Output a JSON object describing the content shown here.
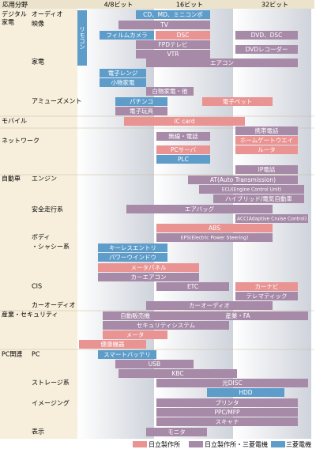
{
  "header": {
    "title": "応用分野",
    "columns": [
      "4/8ビット",
      "16ビット",
      "32ビット"
    ]
  },
  "remote": "リモコン",
  "categories": [
    "デジタル",
    "家電",
    "オーディオ",
    "映像",
    "家電",
    "アミューズメント",
    "モバイル",
    "ネットワーク",
    "自動車",
    "エンジン",
    "安全走行系",
    "ボディ",
    "・シャシー系",
    "CIS",
    "カーオーディオ",
    "産業・セキュリティ",
    "PC関連",
    "PC",
    "ストレージ系",
    "イメージング",
    "表示"
  ],
  "legend": [
    {
      "label": "日立製作所",
      "color": "#e99393"
    },
    {
      "label": "日立製作所・三菱電機",
      "color": "#a68aa8"
    },
    {
      "label": "三菱電機",
      "color": "#5e9dc9"
    }
  ],
  "bars": [
    {
      "label": "CD、MD、ミニコンポ",
      "maker": 2
    },
    {
      "label": "TV",
      "maker": 1
    },
    {
      "label": "フィルムカメラ",
      "maker": 2
    },
    {
      "label": "DSC",
      "maker": 0
    },
    {
      "label": "DVD、DSC",
      "maker": 1
    },
    {
      "label": "FPDテレビ",
      "maker": 1
    },
    {
      "label": "DVDレコーダー",
      "maker": 1
    },
    {
      "label": "VTR",
      "maker": 1
    },
    {
      "label": "エアコン",
      "maker": 1
    },
    {
      "label": "電子レンジ",
      "maker": 2
    },
    {
      "label": "小物家電",
      "maker": 2
    },
    {
      "label": "白物家電・他",
      "maker": 1
    },
    {
      "label": "パチンコ",
      "maker": 2
    },
    {
      "label": "電子ペット",
      "maker": 0
    },
    {
      "label": "電子玩具",
      "maker": 1
    },
    {
      "label": "IC card",
      "maker": 0
    },
    {
      "label": "携帯電話",
      "maker": 1
    },
    {
      "label": "無線・電話",
      "maker": 1
    },
    {
      "label": "ホームゲートウエイ",
      "maker": 0
    },
    {
      "label": "PCサーバ",
      "maker": 0
    },
    {
      "label": "ルータ",
      "maker": 0
    },
    {
      "label": "PLC",
      "maker": 2
    },
    {
      "label": "IP電話",
      "maker": 1
    },
    {
      "label": "AT(Auto Transmission)",
      "maker": 1
    },
    {
      "label": "ECU(Engine Control Unit)",
      "maker": 1
    },
    {
      "label": "ハイブリッド/電気自動車",
      "maker": 1
    },
    {
      "label": "エアバッグ",
      "maker": 1
    },
    {
      "label": "ACC(Adaptive Cruise Control)",
      "maker": 1
    },
    {
      "label": "ABS",
      "maker": 0
    },
    {
      "label": "EPS(Electric Power Steering)",
      "maker": 1
    },
    {
      "label": "キーレスエントリ",
      "maker": 2
    },
    {
      "label": "パワーウインドウ",
      "maker": 2
    },
    {
      "label": "メータパネル",
      "maker": 0
    },
    {
      "label": "カーエアコン",
      "maker": 1
    },
    {
      "label": "ETC",
      "maker": 1
    },
    {
      "label": "カーナビ",
      "maker": 0
    },
    {
      "label": "テレマティック",
      "maker": 1
    },
    {
      "label": "カーオーディオ",
      "maker": 1
    },
    {
      "label": "自動販売機",
      "maker": 1
    },
    {
      "label": "産業・FA",
      "maker": 1
    },
    {
      "label": "セキュリティシステム",
      "maker": 1
    },
    {
      "label": "メータ",
      "maker": 0
    },
    {
      "label": "健康機器",
      "maker": 0
    },
    {
      "label": "スマートバッテリ",
      "maker": 2
    },
    {
      "label": "USB",
      "maker": 1
    },
    {
      "label": "KBC",
      "maker": 1
    },
    {
      "label": "光DISC",
      "maker": 1
    },
    {
      "label": "HDD",
      "maker": 2
    },
    {
      "label": "プリンタ",
      "maker": 1
    },
    {
      "label": "PPC/MFP",
      "maker": 1
    },
    {
      "label": "スキャナ",
      "maker": 1
    },
    {
      "label": "モニタ",
      "maker": 1
    }
  ]
}
